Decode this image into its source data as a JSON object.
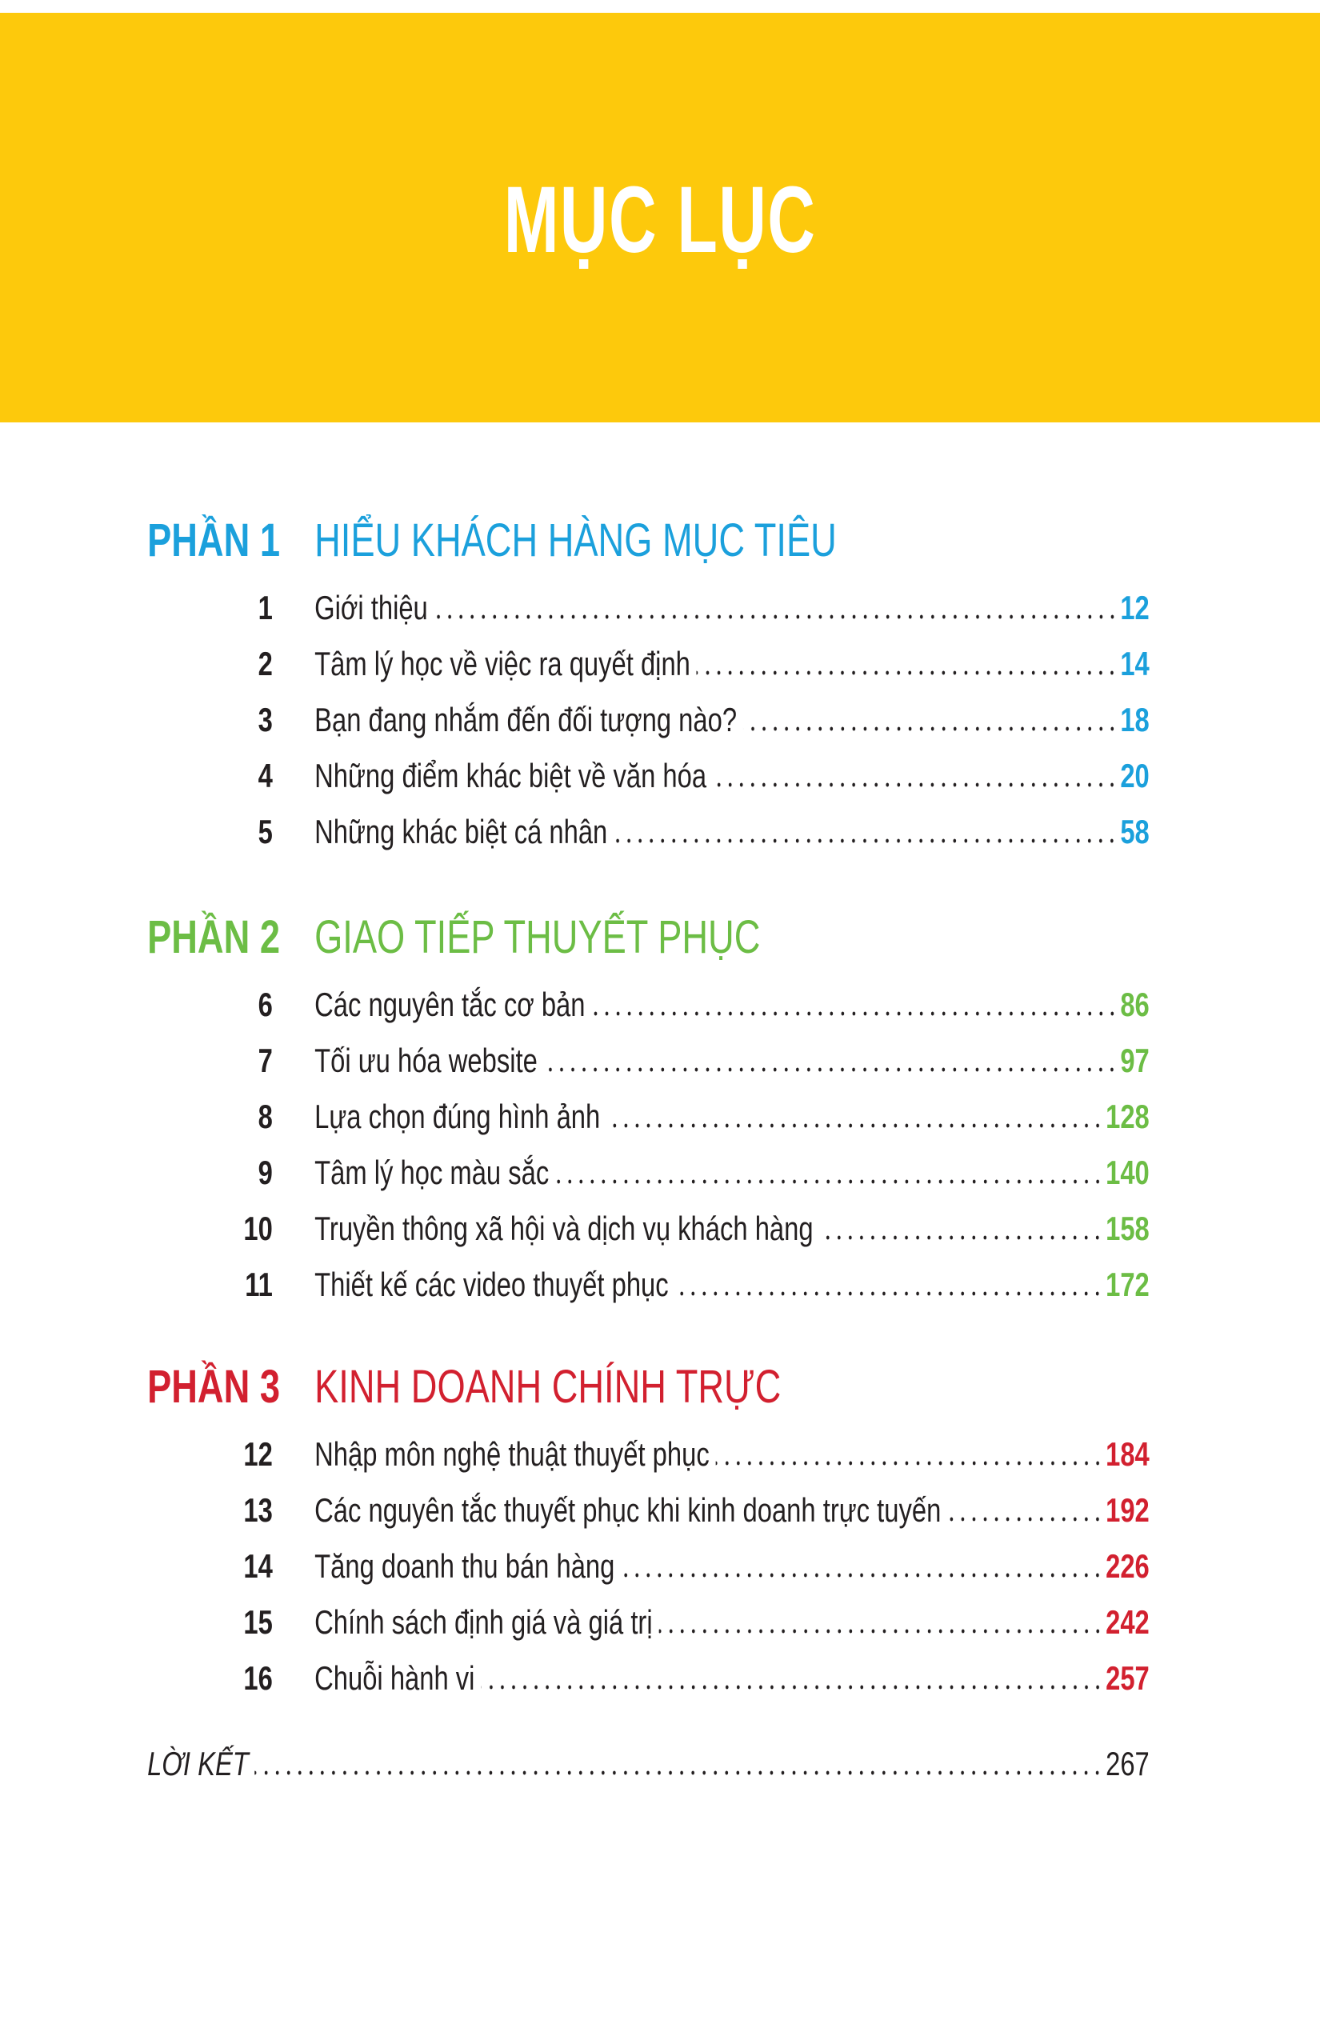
{
  "header": {
    "title": "MỤC LỤC",
    "background_color": "#fdc90c"
  },
  "sections": [
    {
      "label": "PHẦN 1",
      "title": "HIỂU KHÁCH HÀNG MỤC TIÊU",
      "color": "#1ba0dc",
      "entries": [
        {
          "num": "1",
          "title": "Giới thiệu",
          "page": "12"
        },
        {
          "num": "2",
          "title": "Tâm lý học về việc ra quyết định",
          "page": "14"
        },
        {
          "num": "3",
          "title": "Bạn đang nhắm đến đối tượng nào?",
          "page": "18"
        },
        {
          "num": "4",
          "title": "Những điểm khác biệt về văn hóa",
          "page": "20"
        },
        {
          "num": "5",
          "title": "Những khác biệt cá nhân",
          "page": "58"
        }
      ]
    },
    {
      "label": "PHẦN 2",
      "title": "GIAO TIẾP THUYẾT PHỤC",
      "color": "#6cbd45",
      "entries": [
        {
          "num": "6",
          "title": "Các nguyên tắc cơ bản",
          "page": "86"
        },
        {
          "num": "7",
          "title": "Tối ưu hóa website",
          "page": "97"
        },
        {
          "num": "8",
          "title": "Lựa chọn đúng hình ảnh",
          "page": "128"
        },
        {
          "num": "9",
          "title": "Tâm lý học màu sắc",
          "page": "140"
        },
        {
          "num": "10",
          "title": "Truyền thông xã hội và dịch vụ khách hàng",
          "page": "158"
        },
        {
          "num": "11",
          "title": "Thiết kế các video thuyết phục",
          "page": "172"
        }
      ]
    },
    {
      "label": "PHẦN 3",
      "title": "KINH DOANH CHÍNH TRỰC",
      "color": "#d2202f",
      "entries": [
        {
          "num": "12",
          "title": "Nhập môn nghệ thuật thuyết phục",
          "page": "184"
        },
        {
          "num": "13",
          "title": "Các nguyên tắc thuyết phục khi kinh doanh trực tuyến",
          "page": "192"
        },
        {
          "num": "14",
          "title": "Tăng doanh thu bán hàng",
          "page": "226"
        },
        {
          "num": "15",
          "title": "Chính sách định giá và giá trị",
          "page": "242"
        },
        {
          "num": "16",
          "title": "Chuỗi hành vi",
          "page": "257"
        }
      ]
    }
  ],
  "epilogue": {
    "title": "LỜI KẾT",
    "page": "267"
  }
}
